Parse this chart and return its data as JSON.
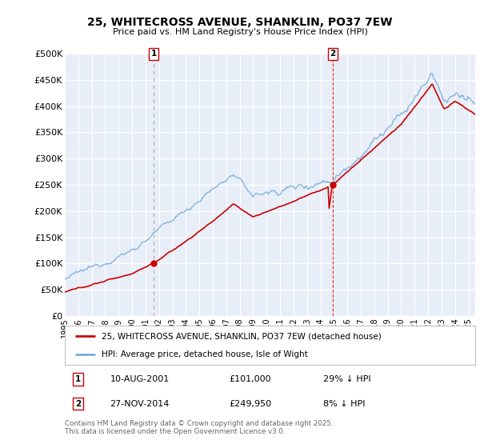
{
  "title": "25, WHITECROSS AVENUE, SHANKLIN, PO37 7EW",
  "subtitle": "Price paid vs. HM Land Registry's House Price Index (HPI)",
  "ylabel_ticks": [
    "£0",
    "£50K",
    "£100K",
    "£150K",
    "£200K",
    "£250K",
    "£300K",
    "£350K",
    "£400K",
    "£450K",
    "£500K"
  ],
  "ytick_values": [
    0,
    50000,
    100000,
    150000,
    200000,
    250000,
    300000,
    350000,
    400000,
    450000,
    500000
  ],
  "ylim": [
    0,
    500000
  ],
  "xlim_start": 1995.0,
  "xlim_end": 2025.5,
  "sale1_x": 2001.608,
  "sale1_y": 101000,
  "sale2_x": 2014.906,
  "sale2_y": 249950,
  "sale1_date": "10-AUG-2001",
  "sale1_price": "£101,000",
  "sale1_hpi": "29% ↓ HPI",
  "sale2_date": "27-NOV-2014",
  "sale2_price": "£249,950",
  "sale2_hpi": "8% ↓ HPI",
  "legend_line1": "25, WHITECROSS AVENUE, SHANKLIN, PO37 7EW (detached house)",
  "legend_line2": "HPI: Average price, detached house, Isle of Wight",
  "footnote": "Contains HM Land Registry data © Crown copyright and database right 2025.\nThis data is licensed under the Open Government Licence v3.0.",
  "line_color_red": "#cc0000",
  "line_color_blue": "#7aaddb",
  "bg_color": "#e8eef8",
  "grid_color": "#ffffff",
  "annotation_box_color": "#cc0000",
  "vline1_color": "#999999",
  "vline2_color": "#cc0000"
}
